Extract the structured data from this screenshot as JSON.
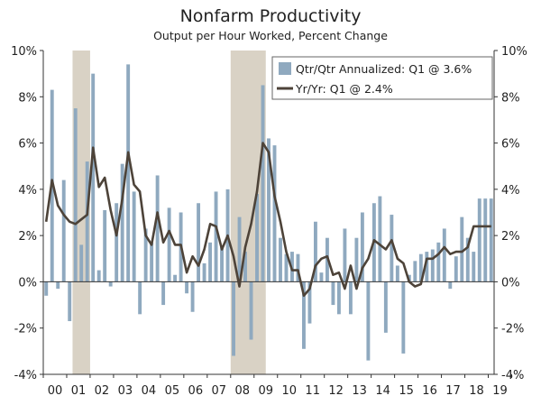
{
  "chart_data": {
    "type": "bar+line",
    "title": "Nonfarm Productivity",
    "subtitle": "Output per Hour Worked, Percent Change",
    "ylim": [
      -4,
      10
    ],
    "y_ticks": [
      "-4%",
      "-2%",
      "0%",
      "2%",
      "4%",
      "6%",
      "8%",
      "10%"
    ],
    "y_tick_values": [
      -4,
      -2,
      0,
      2,
      4,
      6,
      8,
      10
    ],
    "x_tick_labels": [
      "00",
      "01",
      "02",
      "03",
      "04",
      "05",
      "06",
      "07",
      "08",
      "09",
      "10",
      "11",
      "12",
      "13",
      "14",
      "15",
      "16",
      "17",
      "18",
      "19"
    ],
    "start_year": 2000,
    "quarters_total": 77,
    "recessions": [
      {
        "start_quarter_index": 5,
        "end_quarter_index": 7
      },
      {
        "start_quarter_index": 32,
        "end_quarter_index": 37
      }
    ],
    "colors": {
      "bars": "#8fa9bf",
      "line": "#4d4339",
      "recession": "#d9d2c5",
      "axis": "#333333"
    },
    "series": [
      {
        "name": "Qtr/Qtr Annualized: Q1 @ 3.6%",
        "kind": "bar",
        "values": [
          -0.6,
          8.3,
          -0.3,
          4.4,
          -1.7,
          7.5,
          1.6,
          5.2,
          9.0,
          0.5,
          3.1,
          -0.2,
          3.4,
          5.1,
          9.4,
          3.9,
          -1.4,
          2.3,
          1.7,
          4.6,
          -1.0,
          3.2,
          0.3,
          3.0,
          -0.5,
          -1.3,
          3.4,
          0.8,
          1.7,
          3.9,
          1.5,
          4.0,
          -3.2,
          2.8,
          1.3,
          -2.5,
          3.8,
          8.5,
          6.2,
          5.9,
          1.9,
          1.2,
          1.3,
          1.2,
          -2.9,
          -1.8,
          2.6,
          0.4,
          1.9,
          -1.0,
          -1.4,
          2.3,
          -1.4,
          1.9,
          3.0,
          -3.4,
          3.4,
          3.7,
          -2.2,
          2.9,
          0.7,
          -3.1,
          0.3,
          0.9,
          1.2,
          1.3,
          1.4,
          1.7,
          2.3,
          -0.3,
          1.1,
          2.8,
          1.9,
          1.3,
          3.6,
          3.6,
          3.6
        ]
      },
      {
        "name": "Yr/Yr: Q1 @ 2.4%",
        "kind": "line",
        "values": [
          2.6,
          4.4,
          3.3,
          2.9,
          2.6,
          2.5,
          2.7,
          2.9,
          5.8,
          4.1,
          4.5,
          3.1,
          2.0,
          3.6,
          5.6,
          4.2,
          3.9,
          2.0,
          1.6,
          3.0,
          1.7,
          2.2,
          1.6,
          1.6,
          0.4,
          1.1,
          0.7,
          1.4,
          2.5,
          2.4,
          1.4,
          2.0,
          1.1,
          -0.2,
          1.5,
          2.5,
          3.9,
          6.0,
          5.6,
          3.7,
          2.6,
          1.3,
          0.5,
          0.5,
          -0.6,
          -0.3,
          0.7,
          1.0,
          1.1,
          0.3,
          0.4,
          -0.3,
          0.7,
          -0.3,
          0.6,
          1.0,
          1.8,
          1.6,
          1.4,
          1.8,
          1.0,
          0.8,
          0.0,
          -0.2,
          -0.1,
          1.0,
          1.0,
          1.2,
          1.5,
          1.2,
          1.3,
          1.3,
          1.5,
          2.4,
          2.4,
          2.4,
          2.4
        ]
      }
    ],
    "legend": [
      "Qtr/Qtr Annualized: Q1 @ 3.6%",
      "Yr/Yr: Q1 @ 2.4%"
    ]
  }
}
